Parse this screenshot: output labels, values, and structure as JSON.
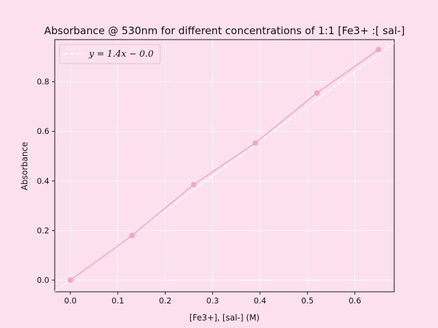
{
  "chart_data": {
    "type": "scatter",
    "title": "Absorbance @ 530nm for different concentrations of 1:1 [Fe3+ :[ sal-]",
    "xlabel": "[Fe3+], [sal-] (M)",
    "ylabel": "Absorbance",
    "xlim": [
      -0.033,
      0.683
    ],
    "ylim": [
      -0.047,
      0.97
    ],
    "xticks": [
      "0.0",
      "0.1",
      "0.2",
      "0.3",
      "0.4",
      "0.5",
      "0.6"
    ],
    "yticks": [
      "0.0",
      "0.2",
      "0.4",
      "0.6",
      "0.8"
    ],
    "grid": true,
    "legend_position": "top-left",
    "series": [
      {
        "kind": "points-connected",
        "x": [
          0.0,
          0.13,
          0.26,
          0.39,
          0.52,
          0.65
        ],
        "y": [
          0.0,
          0.18,
          0.385,
          0.553,
          0.755,
          0.93
        ],
        "color": "#f5a3c8"
      },
      {
        "kind": "fit",
        "name": "y = 1.4x − 0.0",
        "slope": 1.4,
        "intercept": 0.0,
        "color": "#ffffff"
      },
      {
        "kind": "dotted-trend",
        "x": [
          0.0,
          0.13,
          0.26,
          0.39,
          0.52,
          0.65
        ],
        "y": [
          0.0,
          0.18,
          0.385,
          0.553,
          0.755,
          0.93
        ],
        "color": "#f5a3c8"
      }
    ],
    "colors": {
      "background": "#fde0ee",
      "accent": "#f5a3c8",
      "grid": "#ffffff"
    }
  }
}
